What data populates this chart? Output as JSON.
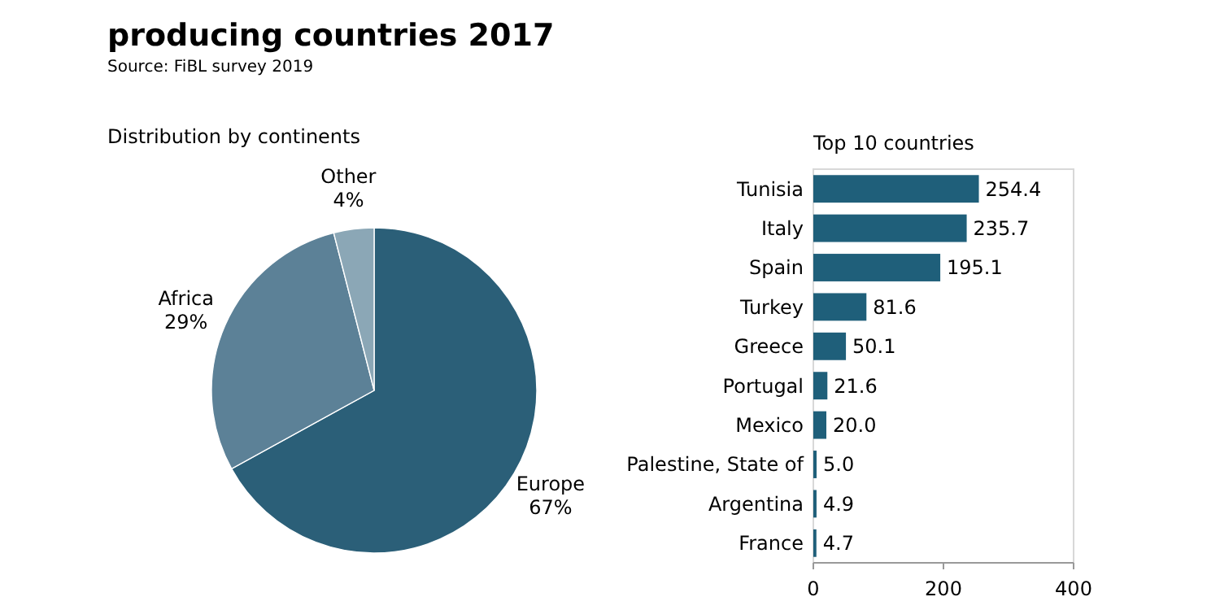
{
  "chart_data": [
    {
      "type": "pie",
      "title": "producing countries 2017",
      "subtitle": "Distribution by continents",
      "annotations": [
        "Source: FiBL survey 2019"
      ],
      "categories": [
        "Europe",
        "Africa",
        "Other"
      ],
      "values": [
        67,
        29,
        4
      ],
      "value_labels": [
        "67%",
        "29%",
        "4%"
      ],
      "colors": [
        "#2b5f78",
        "#5c8197",
        "#8ba7b6"
      ]
    },
    {
      "type": "bar",
      "orientation": "horizontal",
      "title": "Top 10 countries",
      "categories": [
        "Tunisia",
        "Italy",
        "Spain",
        "Turkey",
        "Greece",
        "Portugal",
        "Mexico",
        "Palestine, State of",
        "Argentina",
        "France"
      ],
      "values": [
        254.4,
        235.7,
        195.1,
        81.6,
        50.1,
        21.6,
        20.0,
        5.0,
        4.9,
        4.7
      ],
      "value_labels": [
        "254.4",
        "235.7",
        "195.1",
        "81.6",
        "50.1",
        "21.6",
        "20.0",
        "5.0",
        "4.9",
        "4.7"
      ],
      "color": "#1f5f7a",
      "xlim": [
        0,
        400
      ],
      "xticks": [
        0,
        200,
        400
      ]
    }
  ]
}
